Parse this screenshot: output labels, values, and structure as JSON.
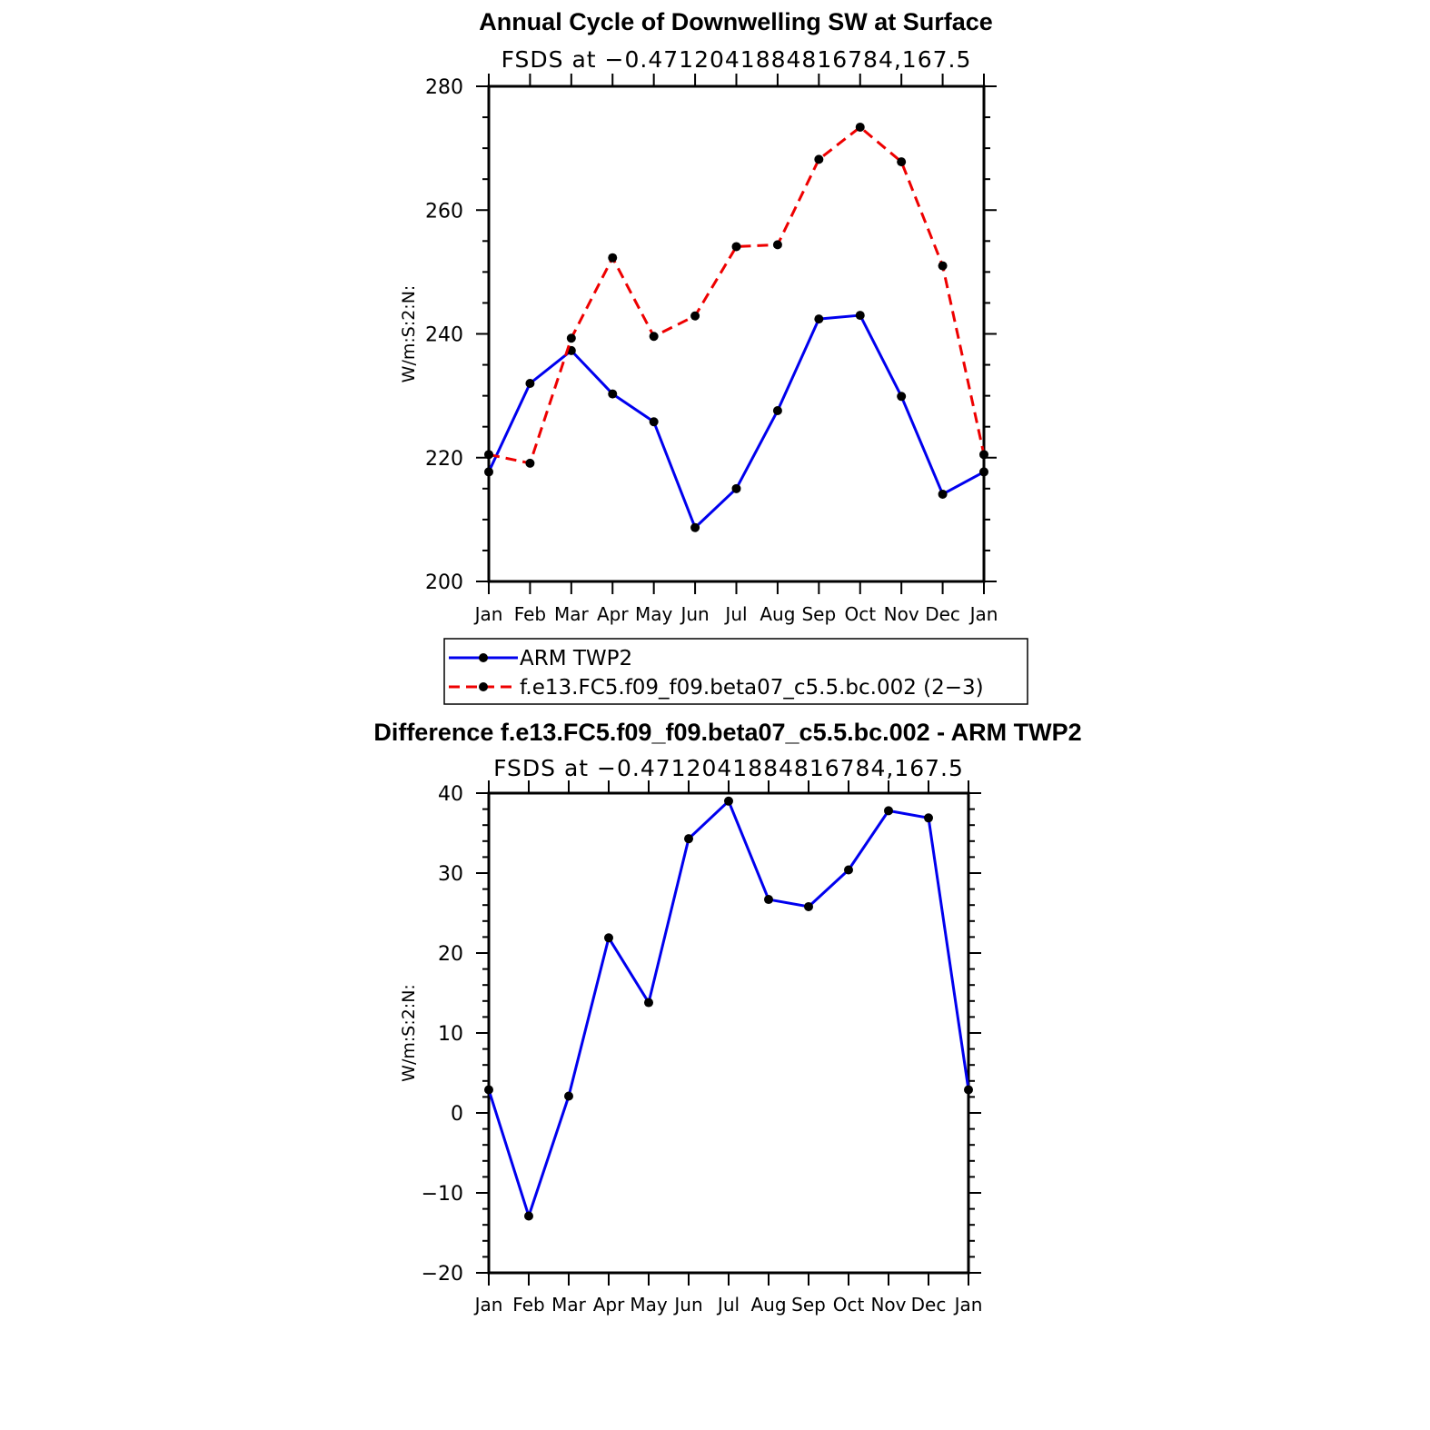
{
  "chart_data": [
    {
      "type": "line",
      "title": "Annual Cycle of Downwelling SW at Surface",
      "subtitle": "FSDS at −0.4712041884816784,167.5",
      "ylabel": "W/m:S:2:N:",
      "xlabel": "",
      "categories": [
        "Jan",
        "Feb",
        "Mar",
        "Apr",
        "May",
        "Jun",
        "Jul",
        "Aug",
        "Sep",
        "Oct",
        "Nov",
        "Dec",
        "Jan"
      ],
      "ylim": [
        200,
        280
      ],
      "yticks": [
        200,
        220,
        240,
        260,
        280
      ],
      "grid": false,
      "legend_position": "below",
      "series": [
        {
          "name": "ARM TWP2",
          "color": "#0000ee",
          "dash": "solid",
          "values": [
            217.7,
            232.0,
            237.3,
            230.3,
            225.8,
            208.7,
            215.0,
            227.6,
            242.4,
            243.0,
            229.9,
            214.1,
            217.7
          ]
        },
        {
          "name": "f.e13.FC5.f09_f09.beta07_c5.5.bc.002 (2−3)",
          "color": "#ee0000",
          "dash": "dashed",
          "values": [
            220.5,
            219.1,
            239.3,
            252.3,
            239.6,
            242.9,
            254.1,
            254.4,
            268.2,
            273.4,
            267.8,
            251.0,
            220.5
          ]
        }
      ]
    },
    {
      "type": "line",
      "title": "Difference f.e13.FC5.f09_f09.beta07_c5.5.bc.002 - ARM TWP2",
      "subtitle": "FSDS at −0.4712041884816784,167.5",
      "ylabel": "W/m:S:2:N:",
      "xlabel": "",
      "categories": [
        "Jan",
        "Feb",
        "Mar",
        "Apr",
        "May",
        "Jun",
        "Jul",
        "Aug",
        "Sep",
        "Oct",
        "Nov",
        "Dec",
        "Jan"
      ],
      "ylim": [
        -20,
        40
      ],
      "yticks": [
        -20,
        -10,
        0,
        10,
        20,
        30,
        40
      ],
      "ytick_labels": [
        "−20",
        "−10",
        "0",
        "10",
        "20",
        "30",
        "40"
      ],
      "grid": false,
      "series": [
        {
          "color": "#0000ee",
          "dash": "solid",
          "values": [
            2.9,
            -12.9,
            2.1,
            21.9,
            13.8,
            34.3,
            39.0,
            26.7,
            25.8,
            30.4,
            37.8,
            36.9,
            2.9
          ]
        }
      ]
    }
  ]
}
